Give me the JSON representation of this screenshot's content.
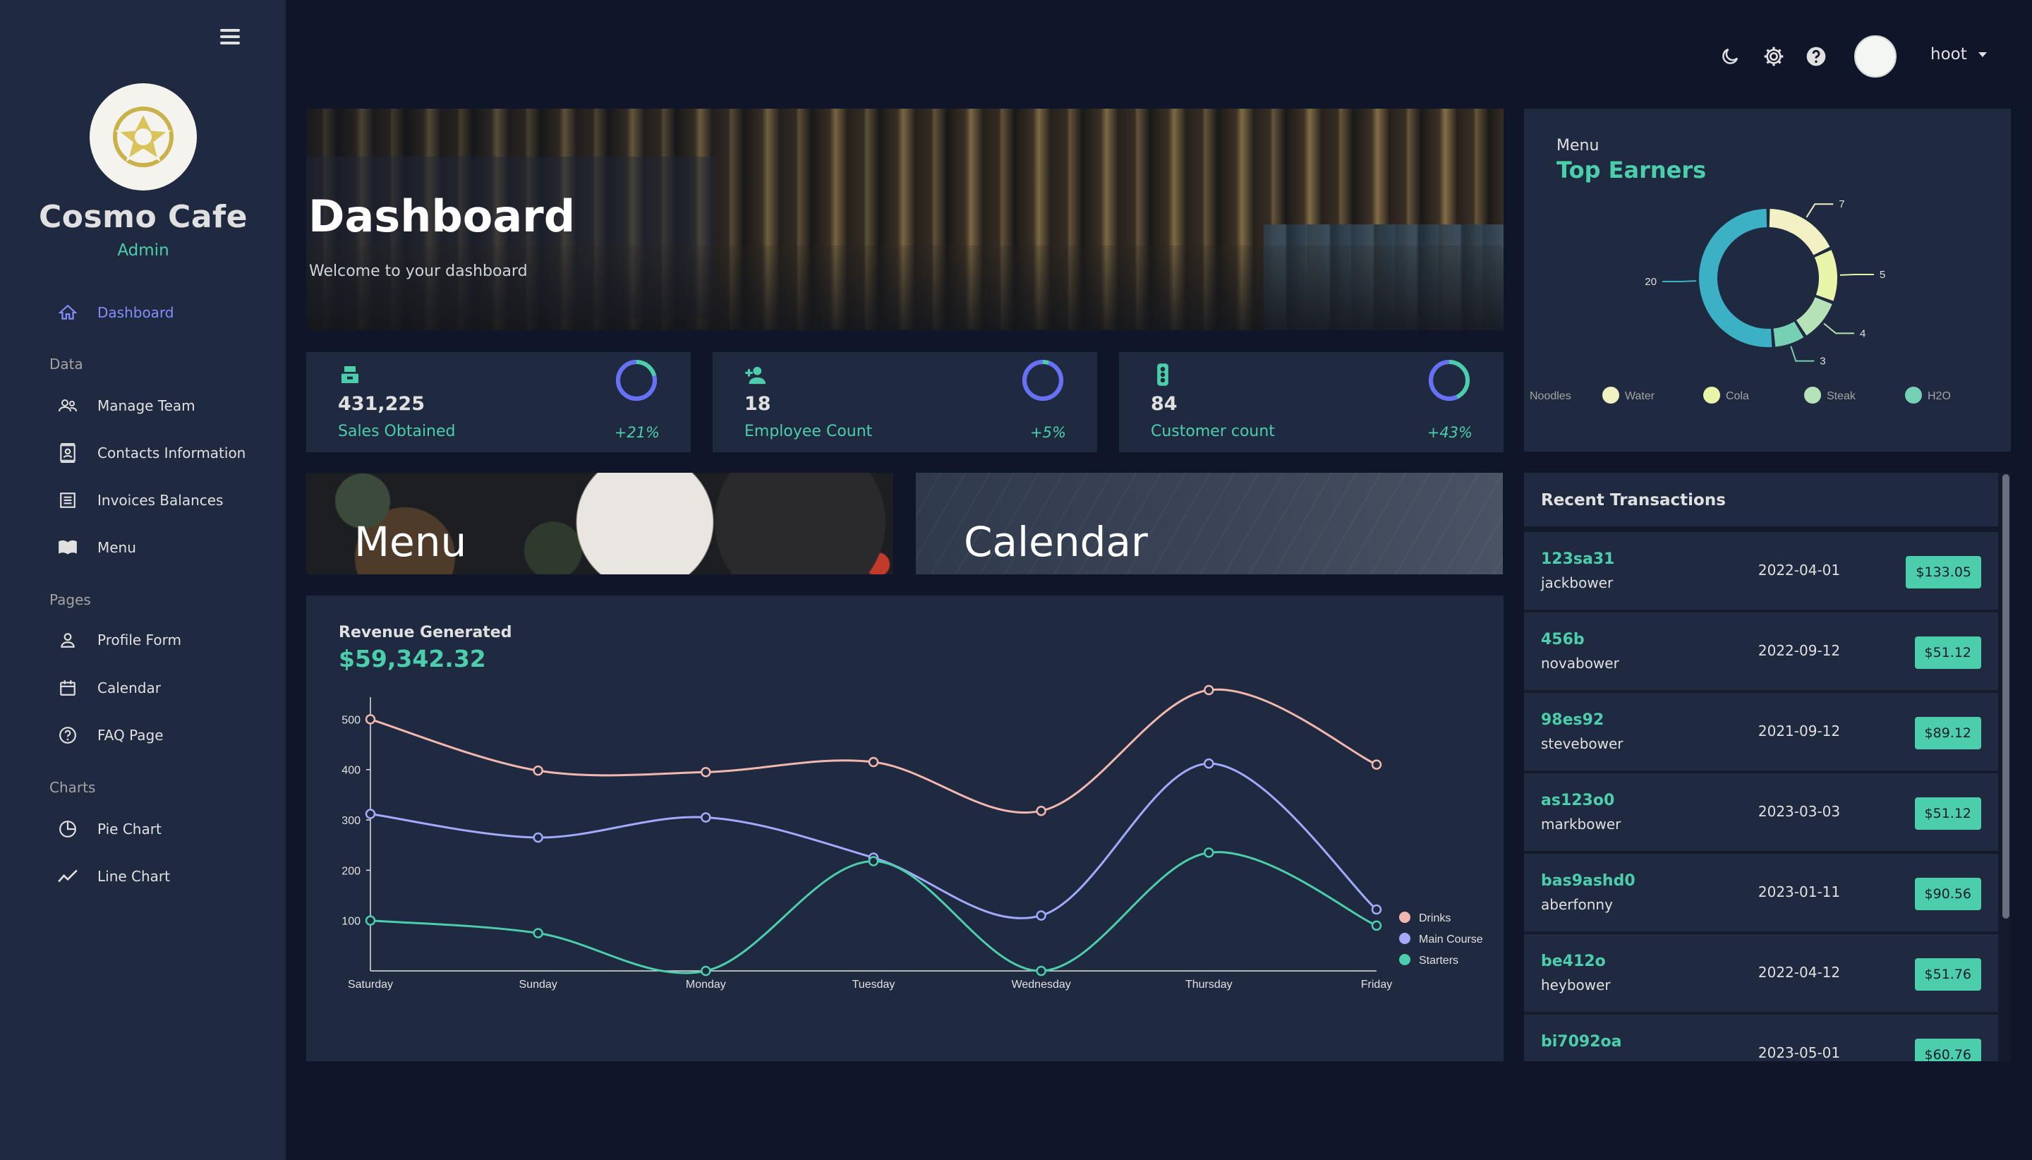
{
  "sidebar": {
    "brand": "Cosmo Cafe",
    "role": "Admin",
    "nav": [
      {
        "label": "Dashboard",
        "icon": "home-icon",
        "active": true
      },
      {
        "section": "Data"
      },
      {
        "label": "Manage Team",
        "icon": "team-icon"
      },
      {
        "label": "Contacts Information",
        "icon": "contacts-icon"
      },
      {
        "label": "Invoices Balances",
        "icon": "invoice-icon"
      },
      {
        "label": "Menu",
        "icon": "menu-book-icon"
      },
      {
        "section": "Pages"
      },
      {
        "label": "Profile Form",
        "icon": "person-icon"
      },
      {
        "label": "Calendar",
        "icon": "calendar-icon"
      },
      {
        "label": "FAQ Page",
        "icon": "help-icon"
      },
      {
        "section": "Charts"
      },
      {
        "label": "Pie Chart",
        "icon": "pie-chart-icon"
      },
      {
        "label": "Line Chart",
        "icon": "line-chart-icon"
      }
    ]
  },
  "topbar": {
    "icons": [
      "moon-icon",
      "gear-icon",
      "help-icon"
    ],
    "username": "hoot"
  },
  "hero": {
    "title": "Dashboard",
    "subtitle": "Welcome to your dashboard"
  },
  "stats": [
    {
      "value": "431,225",
      "label": "Sales Obtained",
      "pct": "+21%",
      "progress": 0.21,
      "icon": "cash-register-icon"
    },
    {
      "value": "18",
      "label": "Employee Count",
      "pct": "+5%",
      "progress": 0.05,
      "icon": "person-add-icon"
    },
    {
      "value": "84",
      "label": "Customer count",
      "pct": "+43%",
      "progress": 0.43,
      "icon": "traffic-icon"
    }
  ],
  "tiles": {
    "menu": "Menu",
    "calendar": "Calendar"
  },
  "revenue": {
    "title": "Revenue Generated",
    "value": "$59,342.32"
  },
  "earners": {
    "caption": "Menu",
    "title": "Top Earners"
  },
  "transactions": {
    "title": "Recent Transactions",
    "rows": [
      {
        "id": "123sa31",
        "user": "jackbower",
        "date": "2022-04-01",
        "amount": "$133.05"
      },
      {
        "id": "456b",
        "user": "novabower",
        "date": "2022-09-12",
        "amount": "$51.12"
      },
      {
        "id": "98es92",
        "user": "stevebower",
        "date": "2021-09-12",
        "amount": "$89.12"
      },
      {
        "id": "as123o0",
        "user": "markbower",
        "date": "2023-03-03",
        "amount": "$51.12"
      },
      {
        "id": "bas9ashd0",
        "user": "aberfonny",
        "date": "2023-01-11",
        "amount": "$90.56"
      },
      {
        "id": "be412o",
        "user": "heybower",
        "date": "2022-04-12",
        "amount": "$51.76"
      },
      {
        "id": "bi7092oa",
        "user": "",
        "date": "2023-05-01",
        "amount": "$60.76"
      }
    ]
  },
  "colors": {
    "accent": "#4cceac",
    "active": "#868dfb",
    "panel": "#1f2a40",
    "bg": "#0f1629"
  },
  "chart_data": [
    {
      "type": "line",
      "categories": [
        "Saturday",
        "Sunday",
        "Monday",
        "Tuesday",
        "Wednesday",
        "Thursday",
        "Friday"
      ],
      "ylim": [
        0,
        530
      ],
      "yticks": [
        100,
        200,
        300,
        400,
        500
      ],
      "series": [
        {
          "name": "Drinks",
          "color": "#f2b8b0",
          "values": [
            500,
            398,
            395,
            415,
            318,
            558,
            410
          ]
        },
        {
          "name": "Main Course",
          "color": "#a4a9fc",
          "values": [
            312,
            265,
            305,
            225,
            110,
            412,
            122
          ]
        },
        {
          "name": "Starters",
          "color": "#4cceac",
          "values": [
            100,
            75,
            0,
            218,
            0,
            235,
            90
          ]
        }
      ],
      "legend": "bottom-right"
    },
    {
      "type": "pie",
      "labels": [
        "Noodles",
        "Water",
        "Cola",
        "Steak",
        "H2O"
      ],
      "values": [
        7,
        5,
        4,
        3,
        20
      ],
      "colors": [
        "#f1f1c4",
        "#e8f5a8",
        "#b5e3b7",
        "#76d1b4",
        "#3cb0c4"
      ],
      "legend": "bottom"
    }
  ]
}
